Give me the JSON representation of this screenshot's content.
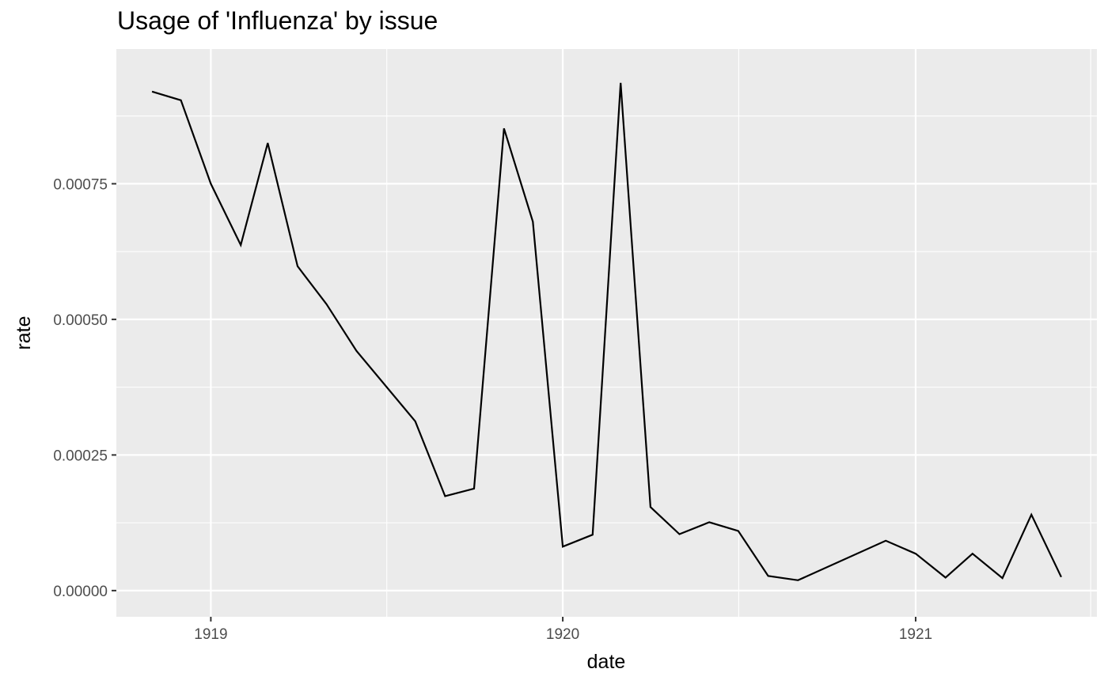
{
  "chart_data": {
    "type": "line",
    "title": "Usage of 'Influenza' by issue",
    "xlabel": "date",
    "ylabel": "rate",
    "x_ticks": [
      "1919",
      "1920",
      "1921"
    ],
    "y_ticks": [
      "0.00000",
      "0.00025",
      "0.00050",
      "0.00075"
    ],
    "y_tick_values": [
      0,
      0.00025,
      0.0005,
      0.00075
    ],
    "xlim": [
      "1918-09-25",
      "1921-07-08"
    ],
    "ylim": [
      -4.83e-05,
      0.0009984
    ],
    "grid": true,
    "panel_background": "#ebebeb",
    "line_color": "#000000",
    "series": [
      {
        "x": [
          "1918-11-01",
          "1918-12-01",
          "1919-01-01",
          "1919-02-01",
          "1919-03-01",
          "1919-04-01",
          "1919-05-01",
          "1919-06-01",
          "1919-08-01",
          "1919-09-01",
          "1919-10-01",
          "1919-11-01",
          "1919-12-01",
          "1920-01-01",
          "1920-02-01",
          "1920-03-01",
          "1920-04-01",
          "1920-05-01",
          "1920-06-01",
          "1920-07-01",
          "1920-08-01",
          "1920-09-01",
          "1920-12-01",
          "1921-01-01",
          "1921-02-01",
          "1921-03-01",
          "1921-04-01",
          "1921-05-01",
          "1921-06-01"
        ],
        "values": [
          0.00092,
          0.000904,
          0.00075,
          0.000637,
          0.000825,
          0.000598,
          0.000528,
          0.000442,
          0.000312,
          0.000174,
          0.000188,
          0.000852,
          0.00068,
          8.1e-05,
          0.000103,
          0.000936,
          0.000154,
          0.000104,
          0.000126,
          0.00011,
          2.7e-05,
          1.9e-05,
          9.2e-05,
          6.8e-05,
          2.4e-05,
          6.8e-05,
          2.3e-05,
          0.00014,
          2.5e-05
        ]
      }
    ]
  }
}
